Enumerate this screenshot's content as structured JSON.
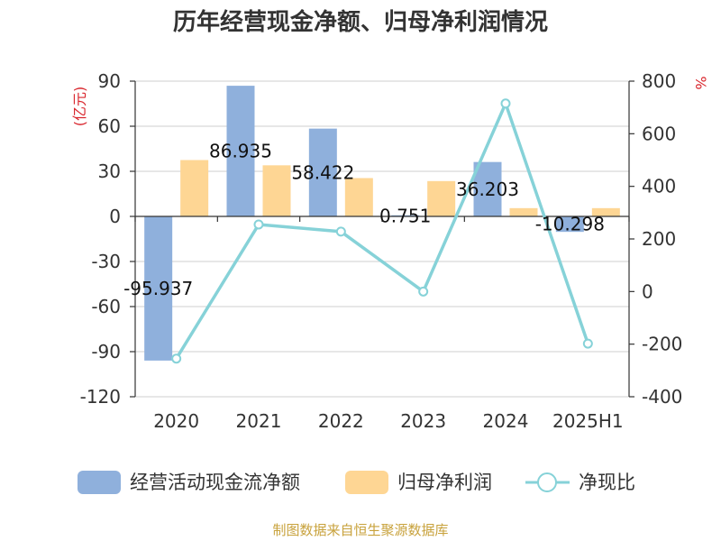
{
  "chart_data": {
    "type": "bar",
    "title": "历年经营现金净额、归母净利润情况",
    "categories": [
      "2020",
      "2021",
      "2022",
      "2023",
      "2024",
      "2025H1"
    ],
    "y_left": {
      "label": "(亿元)",
      "ylim": [
        -120,
        90
      ],
      "ticks": [
        -120,
        -90,
        -60,
        -30,
        0,
        30,
        60,
        90
      ]
    },
    "y_right": {
      "label": "%",
      "ylim": [
        -400,
        800
      ],
      "ticks": [
        -400,
        -200,
        0,
        200,
        400,
        600,
        800
      ]
    },
    "series": [
      {
        "name": "经营活动现金流净额",
        "kind": "bar",
        "axis": "left",
        "color": "#8fb0dc",
        "values": [
          -95.937,
          86.935,
          58.422,
          0.751,
          36.203,
          -10.298
        ],
        "labels": [
          "-95.937",
          "86.935",
          "58.422",
          "0.751",
          "36.203",
          "-10.298"
        ]
      },
      {
        "name": "归母净利润",
        "kind": "bar",
        "axis": "left",
        "color": "#fed694",
        "values": [
          37.5,
          34.0,
          25.5,
          23.5,
          5.5,
          5.5
        ]
      },
      {
        "name": "净现比",
        "kind": "line",
        "axis": "right",
        "color": "#86d2d8",
        "values": [
          -255,
          255,
          228,
          0,
          715,
          -198
        ]
      }
    ],
    "grid": true,
    "legend": "bottom",
    "source": "制图数据来自恒生聚源数据库"
  }
}
